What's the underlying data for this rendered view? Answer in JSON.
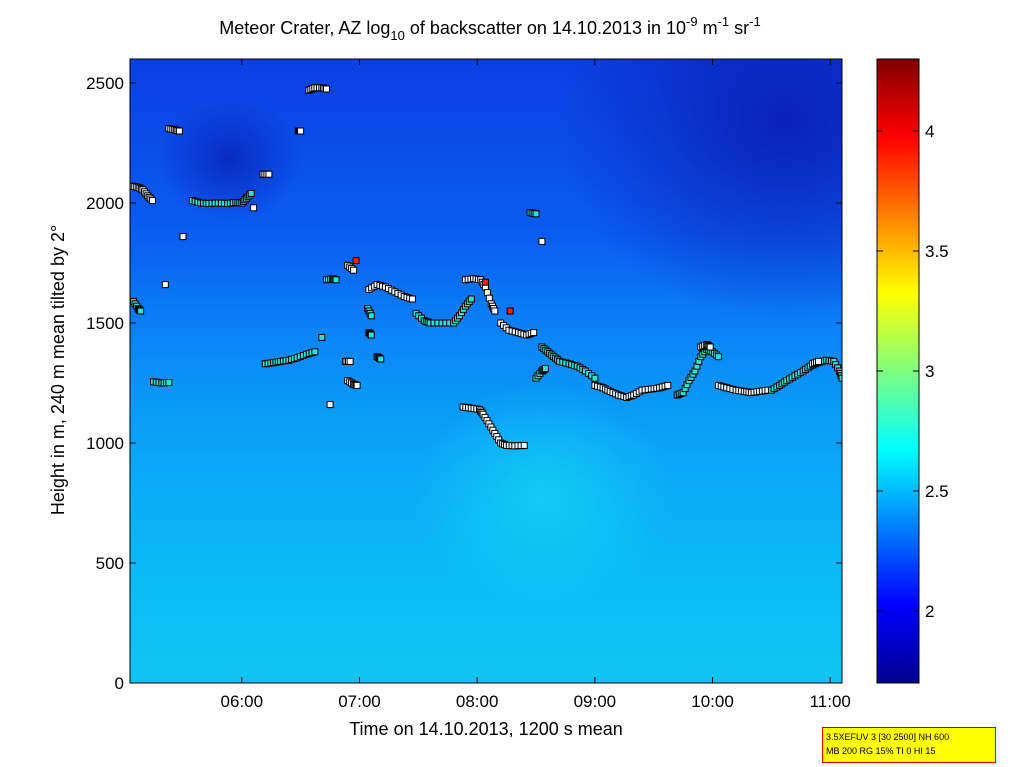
{
  "chart_data": {
    "type": "heatmap",
    "title": {
      "prefix": "Meteor Crater, AZ log",
      "sub": "10",
      "middle": " of backscatter on 14.10.2013 in 10",
      "sup1": "-9",
      "after_sup1": " m",
      "sup2": "-1",
      "after_sup2": " sr",
      "sup3": "-1"
    },
    "xlabel": "Time on 14.10.2013, 1200 s mean",
    "ylabel": "Height in m, 240 m mean tilted by 2°",
    "x_range_hours": [
      5.05,
      11.1
    ],
    "x_ticks": [
      {
        "h": 6,
        "label": "06:00"
      },
      {
        "h": 7,
        "label": "07:00"
      },
      {
        "h": 8,
        "label": "08:00"
      },
      {
        "h": 9,
        "label": "09:00"
      },
      {
        "h": 10,
        "label": "10:00"
      },
      {
        "h": 11,
        "label": "11:00"
      }
    ],
    "ylim": [
      0,
      2600
    ],
    "y_ticks": [
      {
        "v": 0,
        "label": "0"
      },
      {
        "v": 500,
        "label": "500"
      },
      {
        "v": 1000,
        "label": "1000"
      },
      {
        "v": 1500,
        "label": "1500"
      },
      {
        "v": 2000,
        "label": "2000"
      },
      {
        "v": 2500,
        "label": "2500"
      }
    ],
    "colorbar": {
      "range": [
        1.7,
        4.3
      ],
      "ticks": [
        {
          "v": 2,
          "label": "2"
        },
        {
          "v": 2.5,
          "label": "2.5"
        },
        {
          "v": 3,
          "label": "3"
        },
        {
          "v": 3.5,
          "label": "3.5"
        },
        {
          "v": 4,
          "label": "4"
        }
      ],
      "colormap": "jet"
    },
    "marker_segments": [
      {
        "pts": [
          [
            5.07,
            2070
          ],
          [
            5.12,
            2065
          ],
          [
            5.16,
            2055
          ],
          [
            5.2,
            2030
          ],
          [
            5.24,
            2010
          ]
        ],
        "color": "white"
      },
      {
        "pts": [
          [
            5.08,
            1590
          ],
          [
            5.12,
            1560
          ],
          [
            5.14,
            1550
          ]
        ],
        "color": "cyan"
      },
      {
        "pts": [
          [
            5.25,
            1255
          ],
          [
            5.32,
            1250
          ],
          [
            5.38,
            1252
          ]
        ],
        "color": "cyan"
      },
      {
        "pts": [
          [
            5.38,
            2310
          ],
          [
            5.43,
            2305
          ],
          [
            5.47,
            2300
          ]
        ],
        "color": "white"
      },
      {
        "pts": [
          [
            5.35,
            1660
          ]
        ],
        "color": "white"
      },
      {
        "pts": [
          [
            5.5,
            1860
          ]
        ],
        "color": "white"
      },
      {
        "pts": [
          [
            5.58,
            2010
          ],
          [
            5.65,
            2000
          ],
          [
            5.72,
            1998
          ],
          [
            5.8,
            2000
          ],
          [
            5.88,
            1998
          ],
          [
            5.95,
            2002
          ],
          [
            6.0,
            2000
          ],
          [
            6.04,
            2020
          ],
          [
            6.08,
            2040
          ]
        ],
        "color": "cyan"
      },
      {
        "pts": [
          [
            6.1,
            1980
          ]
        ],
        "color": "white"
      },
      {
        "pts": [
          [
            6.18,
            2120
          ],
          [
            6.23,
            2120
          ]
        ],
        "color": "white"
      },
      {
        "pts": [
          [
            6.2,
            1330
          ],
          [
            6.27,
            1335
          ],
          [
            6.33,
            1340
          ],
          [
            6.4,
            1345
          ],
          [
            6.47,
            1355
          ],
          [
            6.55,
            1370
          ],
          [
            6.62,
            1380
          ]
        ],
        "color": "cyan"
      },
      {
        "pts": [
          [
            6.48,
            2300
          ],
          [
            6.5,
            2300
          ]
        ],
        "color": "white"
      },
      {
        "pts": [
          [
            6.57,
            2470
          ],
          [
            6.62,
            2480
          ],
          [
            6.68,
            2480
          ],
          [
            6.72,
            2475
          ]
        ],
        "color": "white"
      },
      {
        "pts": [
          [
            6.72,
            1680
          ],
          [
            6.77,
            1685
          ],
          [
            6.8,
            1680
          ]
        ],
        "color": "cyan"
      },
      {
        "pts": [
          [
            6.68,
            1440
          ]
        ],
        "color": "cyan"
      },
      {
        "pts": [
          [
            6.75,
            1160
          ]
        ],
        "color": "white"
      },
      {
        "pts": [
          [
            6.88,
            1340
          ],
          [
            6.92,
            1340
          ]
        ],
        "color": "white"
      },
      {
        "pts": [
          [
            6.9,
            1260
          ],
          [
            6.95,
            1245
          ],
          [
            6.98,
            1240
          ]
        ],
        "color": "white"
      },
      {
        "pts": [
          [
            6.9,
            1740
          ],
          [
            6.95,
            1720
          ]
        ],
        "color": "white"
      },
      {
        "pts": [
          [
            6.97,
            1760
          ]
        ],
        "color": "red"
      },
      {
        "pts": [
          [
            7.07,
            1560
          ],
          [
            7.1,
            1530
          ]
        ],
        "color": "cyan"
      },
      {
        "pts": [
          [
            7.08,
            1460
          ],
          [
            7.1,
            1450
          ]
        ],
        "color": "cyan"
      },
      {
        "pts": [
          [
            7.08,
            1640
          ],
          [
            7.15,
            1660
          ],
          [
            7.22,
            1650
          ],
          [
            7.3,
            1630
          ],
          [
            7.38,
            1610
          ],
          [
            7.45,
            1600
          ]
        ],
        "color": "white"
      },
      {
        "pts": [
          [
            7.15,
            1360
          ],
          [
            7.18,
            1350
          ]
        ],
        "color": "cyan"
      },
      {
        "pts": [
          [
            7.48,
            1540
          ],
          [
            7.55,
            1510
          ],
          [
            7.6,
            1500
          ],
          [
            7.7,
            1500
          ],
          [
            7.8,
            1500
          ],
          [
            7.85,
            1530
          ],
          [
            7.9,
            1570
          ],
          [
            7.95,
            1600
          ]
        ],
        "color": "cyan"
      },
      {
        "pts": [
          [
            7.9,
            1680
          ],
          [
            7.97,
            1685
          ],
          [
            8.03,
            1680
          ],
          [
            8.07,
            1650
          ],
          [
            8.12,
            1580
          ],
          [
            8.15,
            1550
          ]
        ],
        "color": "white"
      },
      {
        "pts": [
          [
            8.07,
            1670
          ]
        ],
        "color": "red"
      },
      {
        "pts": [
          [
            8.2,
            1500
          ],
          [
            8.27,
            1470
          ],
          [
            8.35,
            1460
          ],
          [
            8.42,
            1450
          ],
          [
            8.48,
            1460
          ]
        ],
        "color": "white"
      },
      {
        "pts": [
          [
            8.28,
            1550
          ]
        ],
        "color": "red"
      },
      {
        "pts": [
          [
            8.45,
            1960
          ],
          [
            8.5,
            1955
          ]
        ],
        "color": "cyan"
      },
      {
        "pts": [
          [
            8.55,
            1840
          ]
        ],
        "color": "white"
      },
      {
        "pts": [
          [
            7.88,
            1150
          ],
          [
            7.95,
            1145
          ],
          [
            8.02,
            1140
          ],
          [
            8.05,
            1120
          ],
          [
            8.1,
            1080
          ],
          [
            8.15,
            1040
          ],
          [
            8.2,
            1000
          ],
          [
            8.25,
            990
          ],
          [
            8.32,
            988
          ],
          [
            8.4,
            990
          ]
        ],
        "color": "white"
      },
      {
        "pts": [
          [
            8.55,
            1400
          ],
          [
            8.6,
            1380
          ],
          [
            8.65,
            1360
          ],
          [
            8.7,
            1340
          ],
          [
            8.78,
            1330
          ],
          [
            8.85,
            1320
          ],
          [
            8.92,
            1300
          ],
          [
            9.0,
            1270
          ]
        ],
        "color": "cyan"
      },
      {
        "pts": [
          [
            8.5,
            1270
          ],
          [
            8.55,
            1300
          ],
          [
            8.58,
            1310
          ]
        ],
        "color": "cyan"
      },
      {
        "pts": [
          [
            9.0,
            1240
          ],
          [
            9.07,
            1230
          ],
          [
            9.13,
            1215
          ],
          [
            9.2,
            1200
          ],
          [
            9.27,
            1190
          ],
          [
            9.33,
            1200
          ],
          [
            9.4,
            1220
          ],
          [
            9.48,
            1225
          ],
          [
            9.55,
            1230
          ],
          [
            9.62,
            1240
          ]
        ],
        "color": "white"
      },
      {
        "pts": [
          [
            9.7,
            1200
          ],
          [
            9.75,
            1210
          ],
          [
            9.8,
            1260
          ],
          [
            9.85,
            1300
          ],
          [
            9.9,
            1360
          ],
          [
            9.95,
            1390
          ],
          [
            10.0,
            1380
          ],
          [
            10.05,
            1360
          ]
        ],
        "color": "cyan"
      },
      {
        "pts": [
          [
            9.9,
            1400
          ],
          [
            9.95,
            1410
          ],
          [
            9.98,
            1400
          ]
        ],
        "color": "white"
      },
      {
        "pts": [
          [
            10.05,
            1240
          ],
          [
            10.12,
            1230
          ],
          [
            10.2,
            1220
          ],
          [
            10.27,
            1215
          ],
          [
            10.33,
            1210
          ],
          [
            10.4,
            1215
          ],
          [
            10.47,
            1220
          ]
        ],
        "color": "white"
      },
      {
        "pts": [
          [
            10.5,
            1220
          ],
          [
            10.57,
            1240
          ],
          [
            10.63,
            1260
          ],
          [
            10.7,
            1280
          ],
          [
            10.77,
            1300
          ],
          [
            10.83,
            1320
          ],
          [
            10.9,
            1335
          ],
          [
            10.97,
            1345
          ],
          [
            11.03,
            1340
          ],
          [
            11.08,
            1300
          ],
          [
            11.1,
            1270
          ]
        ],
        "color": "cyan"
      },
      {
        "pts": [
          [
            10.85,
            1330
          ],
          [
            10.9,
            1340
          ]
        ],
        "color": "white"
      }
    ]
  },
  "info_box": {
    "line1": "3.5XEFUV 3 [30 2500] NH 600",
    "line2": "MB 200 RG 15% TI 0 HI 15"
  }
}
